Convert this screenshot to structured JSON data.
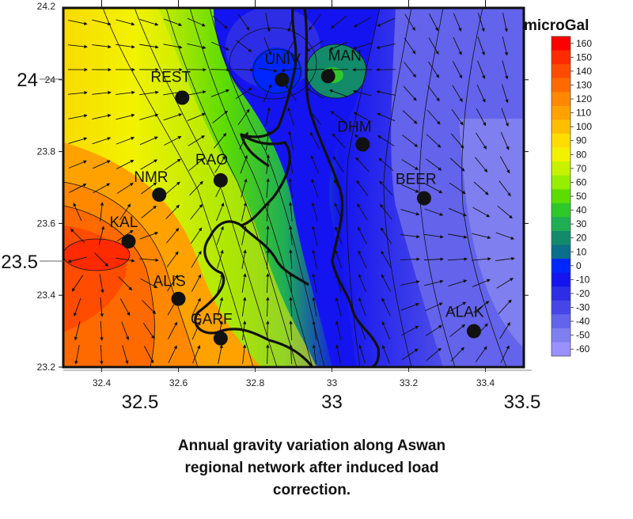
{
  "map": {
    "unit_label": "microGal",
    "x_ticks_inner": [
      "32.4",
      "32.6",
      "32.8",
      "33",
      "33.2",
      "33.4"
    ],
    "y_ticks_inner": [
      "24",
      "23.8",
      "23.6",
      "23.4",
      "23.2"
    ],
    "y_ticks_inner_top": "24.2",
    "x_ticks_outer": [
      "32.5",
      "33",
      "33.5"
    ],
    "y_ticks_outer": [
      "24",
      "23.5"
    ],
    "legend_levels": [
      160,
      150,
      140,
      130,
      120,
      110,
      100,
      90,
      80,
      70,
      60,
      50,
      40,
      30,
      20,
      10,
      0,
      -10,
      -20,
      -30,
      -40,
      -50,
      -60
    ],
    "legend_colors": [
      "#ff0000",
      "#ff2a00",
      "#ff4c00",
      "#ff6a00",
      "#ff8800",
      "#ffa200",
      "#ffbf00",
      "#ffdd00",
      "#f2f200",
      "#c6f200",
      "#98ee00",
      "#5ddc00",
      "#2fc82a",
      "#1fae55",
      "#138a6a",
      "#0b6e8a",
      "#0026ff",
      "#1414f0",
      "#2d2de6",
      "#4646e8",
      "#6363ec",
      "#7f7ff0",
      "#9a90ff"
    ],
    "stations": [
      {
        "name": "REST",
        "lon": 32.61,
        "lat": 23.95
      },
      {
        "name": "UNIV",
        "lon": 32.87,
        "lat": 24.0
      },
      {
        "name": "MAN",
        "lon": 32.99,
        "lat": 24.01
      },
      {
        "name": "DHM",
        "lon": 33.08,
        "lat": 23.82
      },
      {
        "name": "RAO",
        "lon": 32.71,
        "lat": 23.72
      },
      {
        "name": "NMR",
        "lon": 32.55,
        "lat": 23.68
      },
      {
        "name": "BEER",
        "lon": 33.24,
        "lat": 23.67
      },
      {
        "name": "KAL",
        "lon": 32.47,
        "lat": 23.55
      },
      {
        "name": "ALIS",
        "lon": 32.6,
        "lat": 23.39
      },
      {
        "name": "GARF",
        "lon": 32.71,
        "lat": 23.28
      },
      {
        "name": "ALAK",
        "lon": 33.37,
        "lat": 23.3
      }
    ]
  },
  "caption": {
    "line1": "Annual gravity variation along Aswan",
    "line2": "regional network after induced load",
    "line3": "correction."
  }
}
